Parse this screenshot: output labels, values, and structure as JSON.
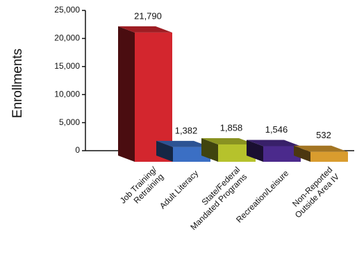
{
  "chart_data": {
    "type": "bar3d",
    "y_label": "Enrollments",
    "categories": [
      "Job Training/\nRetraining",
      "Adult Literacy",
      "State/Federal\nMandated Programs",
      "Recreation/Leisure",
      "Non-Reported\nOutside Area IV"
    ],
    "values": [
      21790,
      1382,
      1858,
      1546,
      532
    ],
    "value_labels": [
      "21,790",
      "1,382",
      "1,858",
      "1,546",
      "532"
    ],
    "colors": [
      "#d3262e",
      "#3b6fc4",
      "#b6c22c",
      "#4b2a8c",
      "#d99c2e"
    ],
    "ylim": [
      0,
      25000
    ],
    "yticks": [
      0,
      {
        "value": 5000,
        "label": "5,000"
      },
      {
        "value": 10000,
        "label": "10,000"
      },
      {
        "value": 15000,
        "label": "15,000"
      },
      {
        "value": 20000,
        "label": "20,000"
      },
      {
        "value": 25000,
        "label": "25,000"
      }
    ]
  }
}
